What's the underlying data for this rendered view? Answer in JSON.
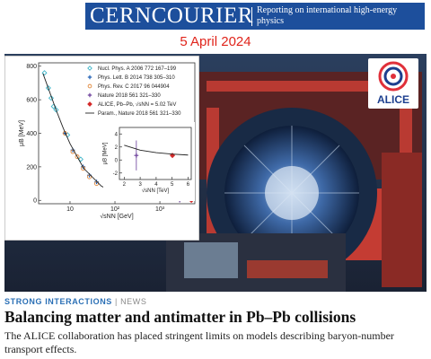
{
  "header": {
    "masthead": "CERNCOURIER",
    "tagline": "Reporting on international high-energy physics"
  },
  "date": "5 April 2024",
  "logo": "ALICE",
  "chart_data": {
    "type": "scatter",
    "ylabel": "μB [MeV]",
    "xlabel": "√sNN [GeV]",
    "xscale": "log",
    "xlim": [
      2,
      6000
    ],
    "ylim": [
      -20,
      820
    ],
    "xticks": [
      10,
      {
        "value": 100,
        "label": "10²"
      },
      {
        "value": 1000,
        "label": "10³"
      }
    ],
    "yticks": [
      0,
      200,
      400,
      600,
      800
    ],
    "series": [
      {
        "name": "Nucl. Phys. A 2006 772 167–199",
        "color": "#3fb6c9",
        "marker": "diamond",
        "x": [
          2.7,
          3.3,
          3.8,
          4.3,
          4.9,
          8.8,
          17.3,
          130,
          200
        ],
        "values": [
          760,
          670,
          610,
          560,
          540,
          390,
          245,
          30,
          22
        ]
      },
      {
        "name": "Phys. Lett. B 2014 738 305–310",
        "color": "#1f5fb5",
        "marker": "plus",
        "x": [
          7.7,
          11.5,
          19.6,
          27,
          39
        ],
        "values": [
          400,
          300,
          200,
          150,
          110
        ]
      },
      {
        "name": "Phys. Rev. C 2017 96 044904",
        "color": "#e0873a",
        "marker": "circle",
        "x": [
          7.7,
          11.5,
          14.5,
          19.6,
          27,
          39,
          62.4,
          200
        ],
        "values": [
          400,
          290,
          260,
          190,
          140,
          100,
          65,
          25
        ]
      },
      {
        "name": "Nature 2018 561 321–330",
        "color": "#6a3d9a",
        "marker": "plus",
        "x": [
          2760
        ],
        "values": [
          1
        ]
      },
      {
        "name": "ALICE, Pb–Pb, √sNN = 5.02 TeV",
        "color": "#d42a2a",
        "marker": "filled-diamond",
        "x": [
          5020
        ],
        "values": [
          1
        ]
      },
      {
        "name": "Param., Nature 2018 561 321–330",
        "color": "#222222",
        "marker": "line",
        "x": [
          2.5,
          3,
          5,
          7,
          10,
          20,
          50,
          100,
          300,
          1000,
          5000
        ],
        "values": [
          756,
          698,
          533,
          433,
          338,
          192,
          85,
          44,
          15,
          4.5,
          0.9
        ]
      }
    ],
    "inset": {
      "type": "scatter",
      "ylabel": "μB [MeV]",
      "xlabel": "√sNN [TeV]",
      "xlim": [
        1.7,
        6.2
      ],
      "ylim": [
        -3,
        5
      ],
      "xticks": [
        2,
        3,
        4,
        5,
        6
      ],
      "yticks": [
        -2,
        0,
        2,
        4
      ],
      "series": [
        {
          "color": "#6a3d9a",
          "marker": "plus",
          "x": [
            2.76
          ],
          "values": [
            0.7
          ],
          "errors": [
            2.3
          ]
        },
        {
          "color": "#d42a2a",
          "marker": "filled-diamond",
          "x": [
            5.02
          ],
          "values": [
            0.7
          ],
          "errors": [
            0.3
          ]
        },
        {
          "color": "#222222",
          "marker": "line",
          "x": [
            2,
            3,
            4,
            5,
            6
          ],
          "values": [
            2.27,
            1.51,
            1.13,
            0.91,
            0.76
          ]
        }
      ]
    }
  },
  "article": {
    "section": "STRONG INTERACTIONS",
    "separator": "|",
    "label": "NEWS",
    "title": "Balancing matter and antimatter in Pb–Pb collisions",
    "summary": "The ALICE collaboration has placed stringent limits on models describing baryon-number transport effects."
  }
}
